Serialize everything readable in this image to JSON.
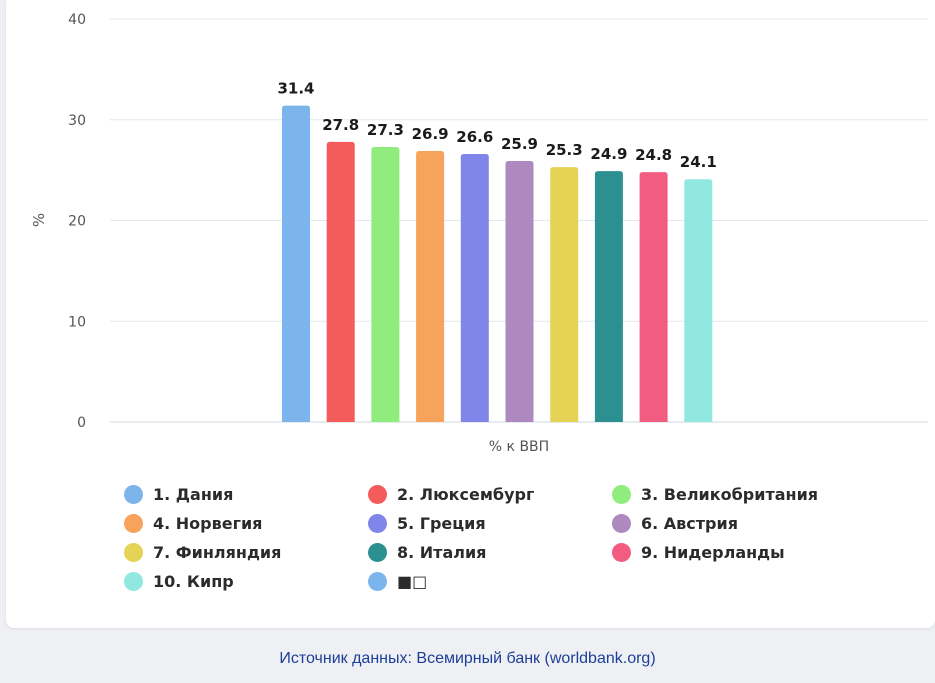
{
  "chart_data": {
    "type": "bar",
    "xlabel": "% к ВВП",
    "ylabel": "%",
    "ylim": [
      0,
      40
    ],
    "yticks": [
      "0",
      "10",
      "20",
      "30",
      "40"
    ],
    "grid": true,
    "legend_position": "bottom",
    "series": [
      {
        "name": "1. Дания",
        "value": 31.4,
        "label": "31.4",
        "color": "#7cb5ec"
      },
      {
        "name": "2. Люксембург",
        "value": 27.8,
        "label": "27.8",
        "color": "#f45b5b"
      },
      {
        "name": "3. Великобритания",
        "value": 27.3,
        "label": "27.3",
        "color": "#90ed7d"
      },
      {
        "name": "4. Норвегия",
        "value": 26.9,
        "label": "26.9",
        "color": "#f7a35c"
      },
      {
        "name": "5. Греция",
        "value": 26.6,
        "label": "26.6",
        "color": "#8085e9"
      },
      {
        "name": "6. Австрия",
        "value": 25.9,
        "label": "25.9",
        "color": "#ae89c0"
      },
      {
        "name": "7. Финляндия",
        "value": 25.3,
        "label": "25.3",
        "color": "#e4d354"
      },
      {
        "name": "8. Италия",
        "value": 24.9,
        "label": "24.9",
        "color": "#2b908f"
      },
      {
        "name": "9. Нидерланды",
        "value": 24.8,
        "label": "24.8",
        "color": "#f15c80"
      },
      {
        "name": "10. Кипр",
        "value": 24.1,
        "label": "24.1",
        "color": "#91e8e1"
      }
    ],
    "extra_legend": {
      "name": "■□",
      "color": "#7cb5ec"
    }
  },
  "source": "Источник данных: Всемирный банк (worldbank.org)"
}
